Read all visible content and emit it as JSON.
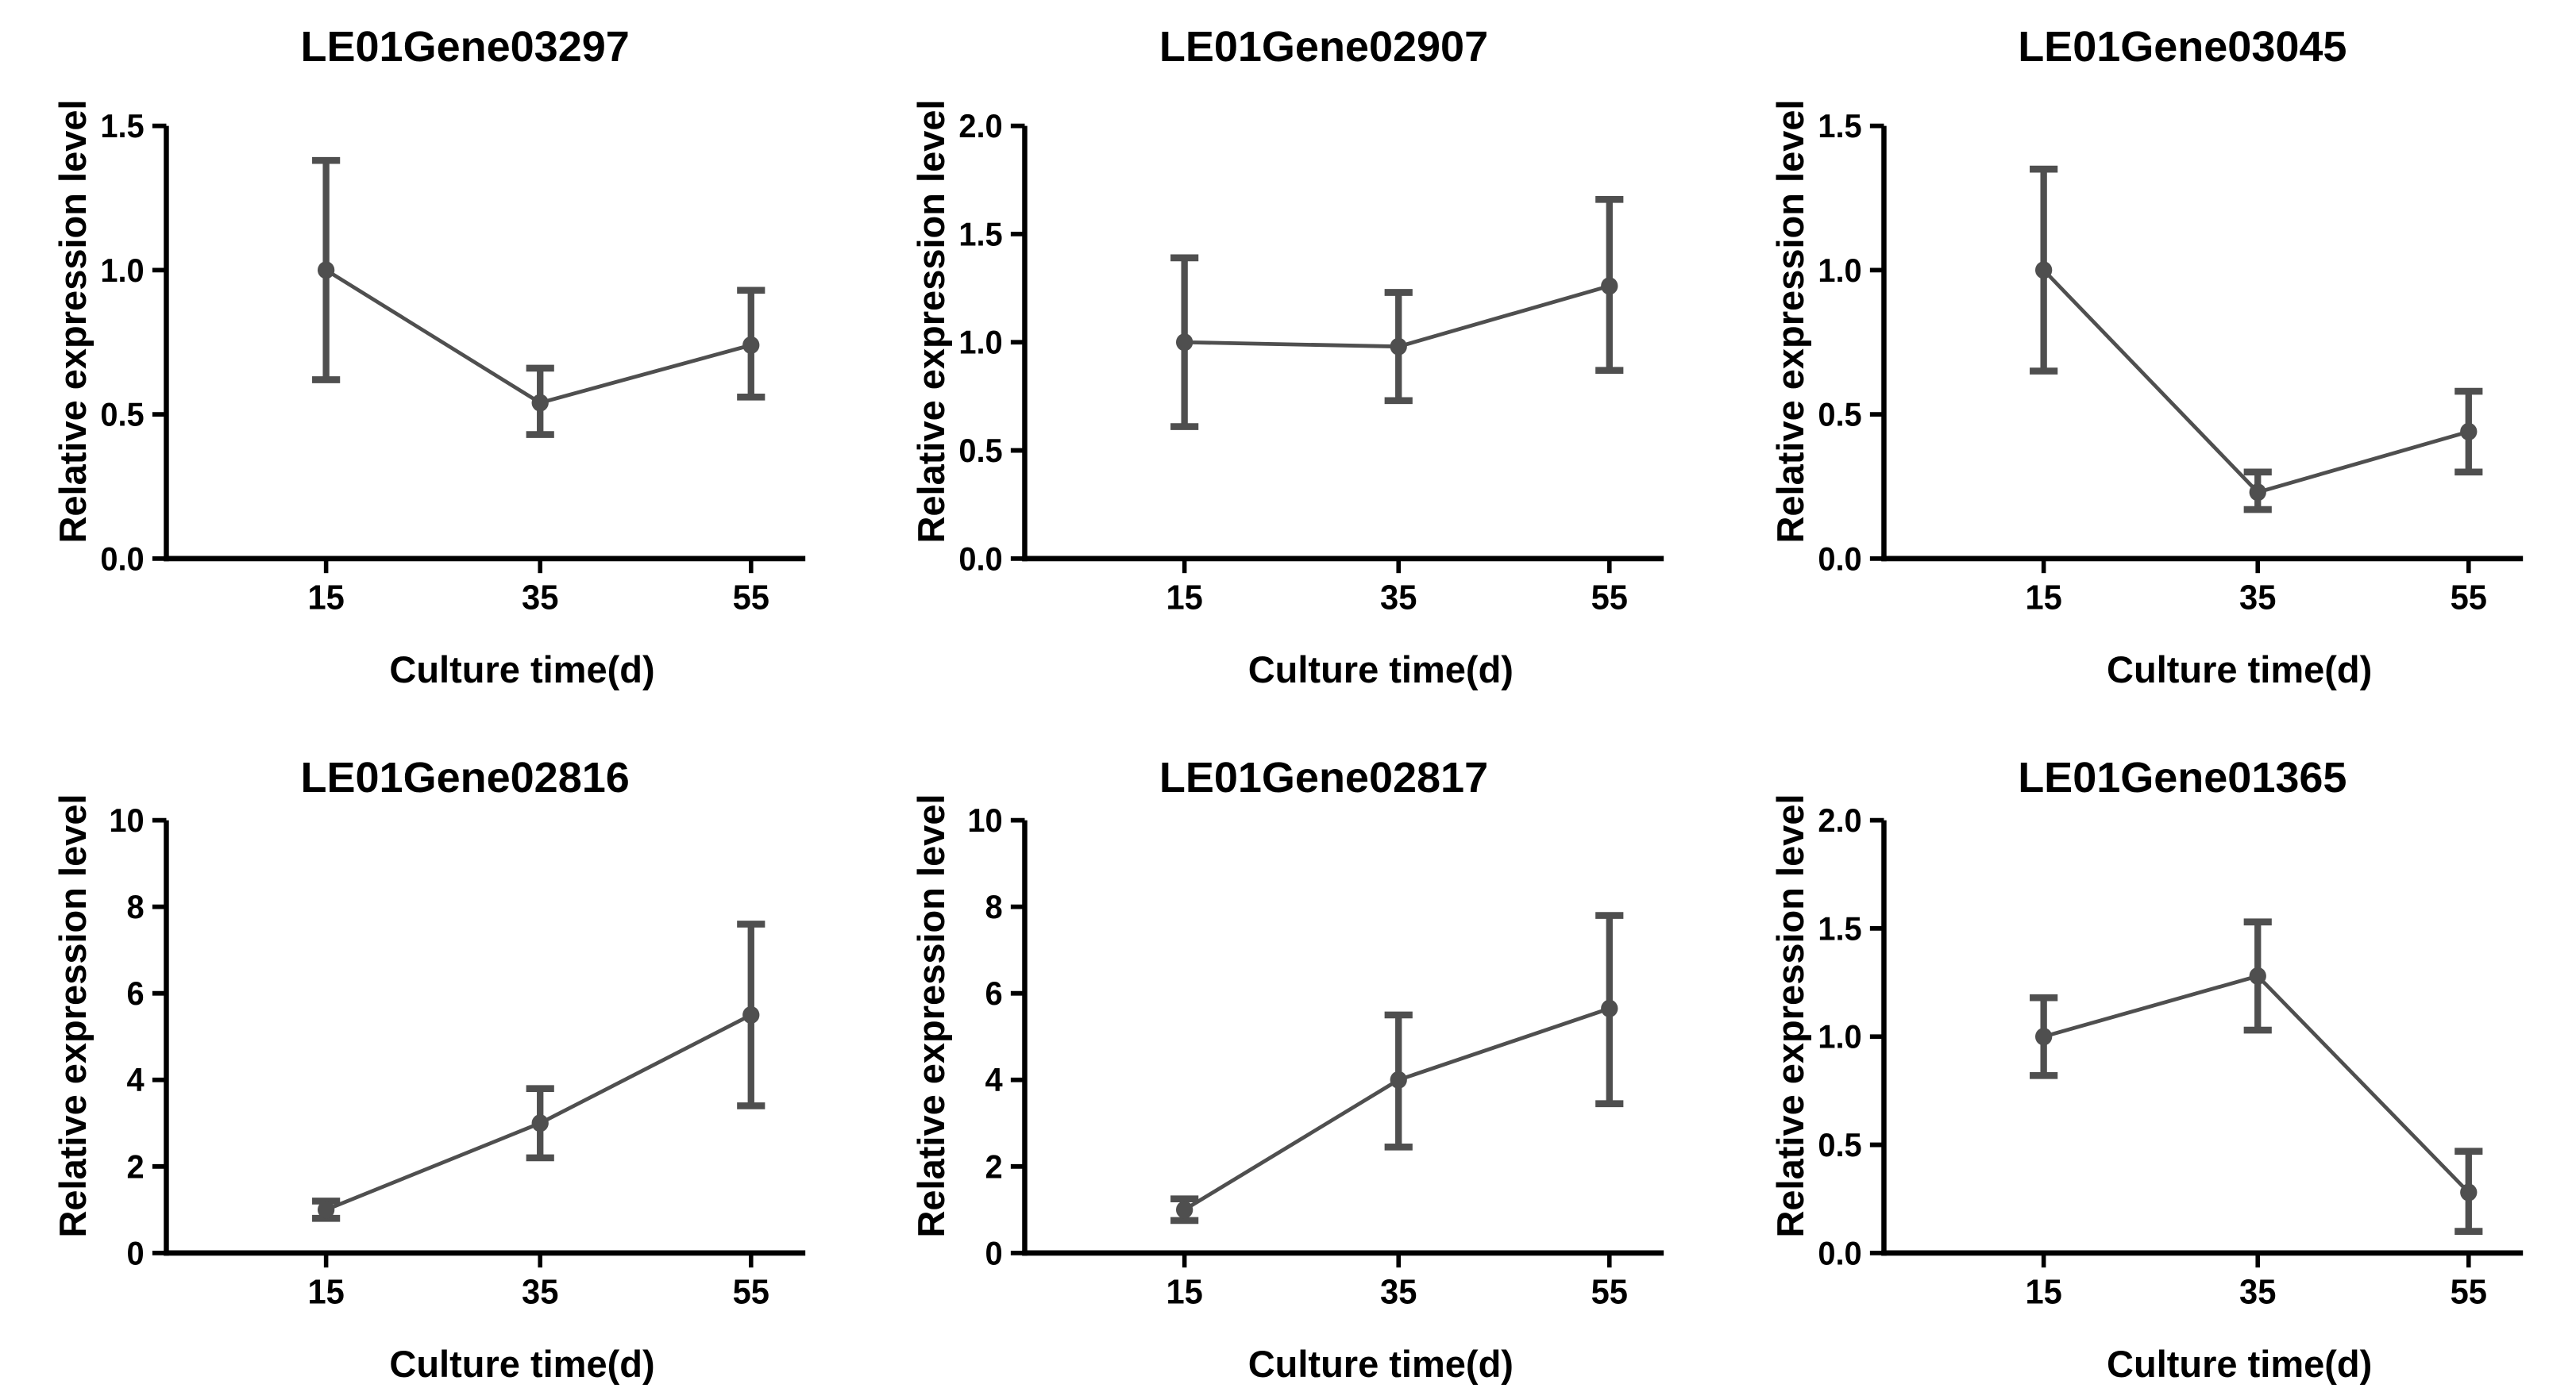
{
  "figure": {
    "background": "#ffffff",
    "accent_color": "#4f4f4f",
    "axis_color": "#000000",
    "x_categories": [
      "15",
      "35",
      "55"
    ]
  },
  "chart_data": [
    {
      "type": "line",
      "title": "LE01Gene03297",
      "xlabel": "Culture time(d)",
      "ylabel": "Relative expression level",
      "categories": [
        "15",
        "35",
        "55"
      ],
      "values": [
        1.0,
        0.54,
        0.74
      ],
      "err_lo": [
        0.62,
        0.43,
        0.56
      ],
      "err_hi": [
        1.38,
        0.66,
        0.93
      ],
      "ylim": [
        0,
        1.5
      ],
      "yticks": [
        0,
        0.5,
        1.0,
        1.5
      ],
      "ytick_labels": [
        "0.0",
        "0.5",
        "1.0",
        "1.5"
      ],
      "grid": false,
      "legend": null
    },
    {
      "type": "line",
      "title": "LE01Gene02907",
      "xlabel": "Culture time(d)",
      "ylabel": "Relative expression level",
      "categories": [
        "15",
        "35",
        "55"
      ],
      "values": [
        1.0,
        0.98,
        1.26
      ],
      "err_lo": [
        0.61,
        0.73,
        0.87
      ],
      "err_hi": [
        1.39,
        1.23,
        1.66
      ],
      "ylim": [
        0,
        2.0
      ],
      "yticks": [
        0,
        0.5,
        1.0,
        1.5,
        2.0
      ],
      "ytick_labels": [
        "0.0",
        "0.5",
        "1.0",
        "1.5",
        "2.0"
      ],
      "grid": false,
      "legend": null
    },
    {
      "type": "line",
      "title": "LE01Gene03045",
      "xlabel": "Culture time(d)",
      "ylabel": "Relative expression level",
      "categories": [
        "15",
        "35",
        "55"
      ],
      "values": [
        1.0,
        0.23,
        0.44
      ],
      "err_lo": [
        0.65,
        0.17,
        0.3
      ],
      "err_hi": [
        1.35,
        0.3,
        0.58
      ],
      "ylim": [
        0,
        1.5
      ],
      "yticks": [
        0,
        0.5,
        1.0,
        1.5
      ],
      "ytick_labels": [
        "0.0",
        "0.5",
        "1.0",
        "1.5"
      ],
      "grid": false,
      "legend": null
    },
    {
      "type": "line",
      "title": "LE01Gene02816",
      "xlabel": "Culture time(d)",
      "ylabel": "Relative expression level",
      "categories": [
        "15",
        "35",
        "55"
      ],
      "values": [
        1.0,
        3.0,
        5.5
      ],
      "err_lo": [
        0.8,
        2.2,
        3.4
      ],
      "err_hi": [
        1.2,
        3.8,
        7.6
      ],
      "ylim": [
        0,
        10
      ],
      "yticks": [
        0,
        2,
        4,
        6,
        8,
        10
      ],
      "ytick_labels": [
        "0",
        "2",
        "4",
        "6",
        "8",
        "10"
      ],
      "grid": false,
      "legend": null
    },
    {
      "type": "line",
      "title": "LE01Gene02817",
      "xlabel": "Culture time(d)",
      "ylabel": "Relative expression level",
      "categories": [
        "15",
        "35",
        "55"
      ],
      "values": [
        1.0,
        4.0,
        5.65
      ],
      "err_lo": [
        0.75,
        2.45,
        3.45
      ],
      "err_hi": [
        1.25,
        5.5,
        7.8
      ],
      "ylim": [
        0,
        10
      ],
      "yticks": [
        0,
        2,
        4,
        6,
        8,
        10
      ],
      "ytick_labels": [
        "0",
        "2",
        "4",
        "6",
        "8",
        "10"
      ],
      "grid": false,
      "legend": null
    },
    {
      "type": "line",
      "title": "LE01Gene01365",
      "xlabel": "Culture time(d)",
      "ylabel": "Relative expression level",
      "categories": [
        "15",
        "35",
        "55"
      ],
      "values": [
        1.0,
        1.28,
        0.28
      ],
      "err_lo": [
        0.82,
        1.03,
        0.1
      ],
      "err_hi": [
        1.18,
        1.53,
        0.47
      ],
      "ylim": [
        0,
        2.0
      ],
      "yticks": [
        0,
        0.5,
        1.0,
        1.5,
        2.0
      ],
      "ytick_labels": [
        "0.0",
        "0.5",
        "1.0",
        "1.5",
        "2.0"
      ],
      "grid": false,
      "legend": null
    }
  ]
}
